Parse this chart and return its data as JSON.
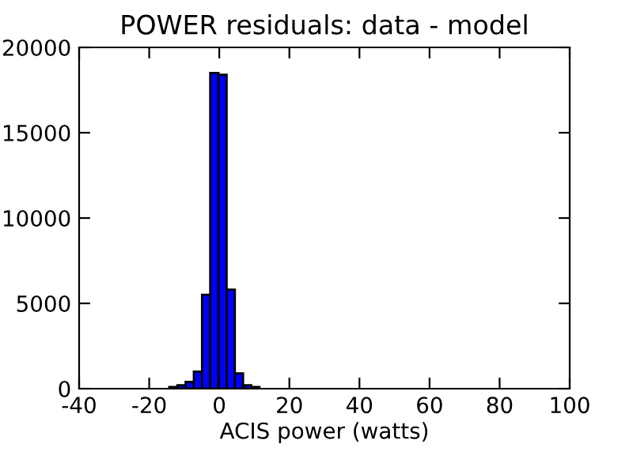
{
  "chart_data": {
    "type": "histogram",
    "title": "POWER residuals: data - model",
    "xlabel": "ACIS power (watts)",
    "bins": [
      -33.0,
      -30.66,
      -28.32,
      -25.98,
      -23.64,
      -21.3,
      -18.96,
      -16.62,
      -14.28,
      -11.94,
      -9.6,
      -7.26,
      -4.92,
      -2.58,
      -0.24,
      2.1,
      4.44,
      6.78,
      9.12,
      11.46,
      13.8,
      16.14,
      18.48,
      20.82,
      23.16,
      25.5,
      27.84,
      30.18,
      32.52,
      34.86,
      37.2,
      39.54,
      41.88,
      44.22,
      46.56,
      48.9,
      51.24,
      53.58,
      55.92,
      58.26,
      60.6,
      62.94,
      65.28,
      67.62,
      69.96,
      72.3,
      74.64,
      76.98,
      79.32,
      81.66,
      84.0
    ],
    "values": [
      0,
      0,
      0,
      0,
      0,
      0,
      0,
      0,
      100,
      200,
      400,
      1000,
      5500,
      18500,
      18400,
      5800,
      900,
      200,
      100,
      0,
      0,
      0,
      0,
      0,
      0,
      0,
      0,
      0,
      0,
      0,
      0,
      0,
      0,
      0,
      0,
      0,
      0,
      0,
      0,
      0,
      0,
      0,
      0,
      0,
      0,
      0,
      0,
      0,
      0,
      0
    ],
    "color": "#0000ff",
    "xlim": [
      -40,
      100
    ],
    "ylim": [
      0,
      20000
    ],
    "xticks": [
      -40,
      -20,
      0,
      20,
      40,
      60,
      80,
      100
    ],
    "yticks": [
      0,
      5000,
      10000,
      15000,
      20000
    ],
    "grid": false
  }
}
